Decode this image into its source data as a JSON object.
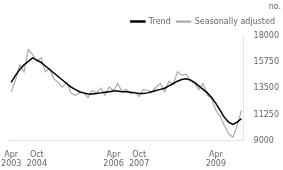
{
  "chart_data": {
    "type": "line",
    "ylabel": "no.",
    "categories": [
      "Apr\n2003",
      null,
      null,
      null,
      null,
      null,
      "Oct\n2004",
      null,
      null,
      null,
      null,
      null,
      null,
      null,
      null,
      null,
      null,
      null,
      null,
      null,
      null,
      null,
      null,
      null,
      "Apr\n2006",
      null,
      null,
      null,
      null,
      null,
      "Oct\n2007",
      null,
      null,
      null,
      null,
      null,
      null,
      null,
      null,
      null,
      null,
      null,
      null,
      null,
      null,
      null,
      null,
      null,
      "Apr\n2009",
      null,
      null,
      null,
      null,
      null,
      null
    ],
    "series": [
      {
        "name": "Trend",
        "color": "#000000",
        "values": [
          14000,
          14600,
          15100,
          15500,
          15800,
          16100,
          15900,
          15700,
          15400,
          15100,
          14800,
          14500,
          14200,
          13900,
          13600,
          13400,
          13200,
          13100,
          13000,
          13000,
          13050,
          13100,
          13150,
          13200,
          13250,
          13250,
          13200,
          13200,
          13150,
          13100,
          13050,
          13050,
          13100,
          13200,
          13300,
          13400,
          13500,
          13700,
          13900,
          14100,
          14250,
          14300,
          14200,
          14000,
          13700,
          13400,
          13100,
          12700,
          12200,
          11600,
          11000,
          10600,
          10400,
          10600,
          10900
        ]
      },
      {
        "name": "Seasonally adjusted",
        "color": "#aaaaaa",
        "values": [
          13200,
          14200,
          15500,
          14900,
          16800,
          16400,
          15800,
          16100,
          14900,
          15200,
          14300,
          14000,
          13600,
          14000,
          13100,
          12900,
          13100,
          13100,
          12700,
          13300,
          13100,
          13500,
          12900,
          13600,
          13300,
          13900,
          13200,
          13400,
          13000,
          13200,
          12800,
          13400,
          13300,
          13200,
          13600,
          13900,
          13200,
          14100,
          13800,
          14900,
          14600,
          14700,
          14200,
          13900,
          13400,
          13900,
          12900,
          12600,
          11600,
          11100,
          10300,
          9600,
          9300,
          10300,
          11600
        ]
      }
    ],
    "ylim": [
      9000,
      18000
    ],
    "yticks": [
      9000,
      11250,
      13500,
      15750,
      18000
    ],
    "grid": false,
    "legend": "upper right"
  }
}
